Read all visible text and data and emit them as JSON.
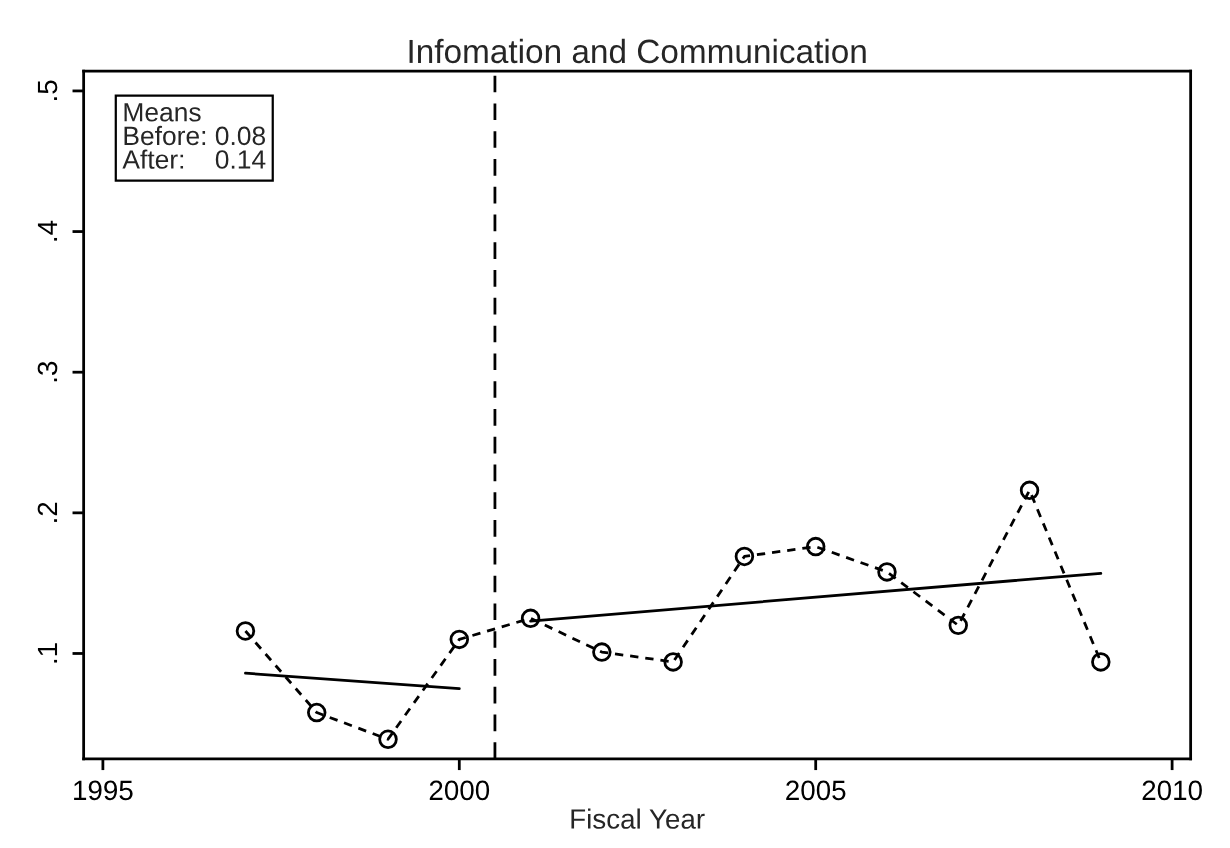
{
  "chart_data": {
    "type": "line",
    "title": "Infomation and Communication",
    "xlabel": "Fiscal Year",
    "series": [
      {
        "color": "#000000",
        "marker": "circle",
        "line_style": "dashed",
        "x": [
          1997,
          1998,
          1999,
          2000,
          2001,
          2002,
          2003,
          2004,
          2005,
          2006,
          2007,
          2008,
          2009
        ],
        "values": [
          0.116,
          0.058,
          0.039,
          0.11,
          0.125,
          0.101,
          0.094,
          0.169,
          0.176,
          0.158,
          0.12,
          0.216,
          0.094
        ]
      },
      {
        "color": "#000000",
        "marker": "none",
        "line_style": "solid",
        "x": [
          1997,
          2000
        ],
        "values": [
          0.086,
          0.075
        ]
      },
      {
        "color": "#000000",
        "marker": "none",
        "line_style": "solid",
        "x": [
          2001,
          2009
        ],
        "values": [
          0.123,
          0.157
        ]
      }
    ],
    "ref_lines": [
      {
        "axis": "x",
        "value": 2000.5,
        "color": "#000000",
        "line_style": "dashed"
      }
    ],
    "annotations": [
      "Means\nBefore: 0.08\nAfter:    0.14"
    ],
    "xlim": [
      1994.73,
      2010.26
    ],
    "xticks": [
      1995,
      2000,
      2005,
      2010
    ],
    "ylim": [
      0.025,
      0.514
    ],
    "yticks": [
      {
        "value": 0.1,
        "label": ".1"
      },
      {
        "value": 0.2,
        "label": ".2"
      },
      {
        "value": 0.3,
        "label": ".3"
      },
      {
        "value": 0.4,
        "label": ".4"
      },
      {
        "value": 0.5,
        "label": ".5"
      }
    ],
    "grid": false,
    "legend": false
  }
}
